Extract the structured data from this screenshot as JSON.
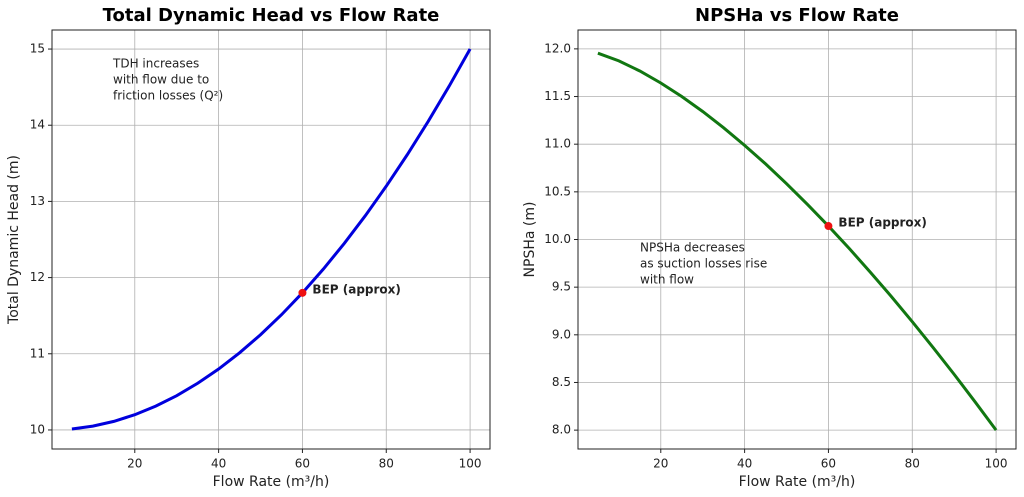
{
  "chart_data": [
    {
      "type": "line",
      "title": "Total Dynamic Head vs Flow Rate",
      "x_label": "Flow Rate (m³/h)",
      "y_label": "Total Dynamic Head (m)",
      "x": [
        5,
        10,
        15,
        20,
        25,
        30,
        35,
        40,
        45,
        50,
        55,
        60,
        65,
        70,
        75,
        80,
        85,
        90,
        95,
        100
      ],
      "series": [
        {
          "name": "TDH",
          "color": "#0000dd",
          "values": [
            10.0125,
            10.05,
            10.1125,
            10.2,
            10.3125,
            10.45,
            10.6125,
            10.8,
            11.0125,
            11.25,
            11.5125,
            11.8,
            12.1125,
            12.45,
            12.8125,
            13.2,
            13.6125,
            14.05,
            14.5125,
            15
          ]
        }
      ],
      "xlim": [
        0.25,
        104.75
      ],
      "xticks": [
        20,
        40,
        60,
        80,
        100
      ],
      "ylim": [
        9.75,
        15.25
      ],
      "yticks": [
        10,
        11,
        12,
        13,
        14,
        15
      ],
      "grid": true,
      "point": {
        "x": 60,
        "y": 11.8,
        "label": "BEP (approx)",
        "color": "#ee1111"
      },
      "annotation": {
        "lines": [
          "TDH increases",
          "with flow due to",
          "friction losses (Q²)"
        ],
        "color": "#2222cc"
      }
    },
    {
      "type": "line",
      "title": "NPSHa vs Flow Rate",
      "x_label": "Flow Rate (m³/h)",
      "y_label": "NPSHa (m)",
      "x": [
        5,
        10,
        15,
        20,
        25,
        30,
        35,
        40,
        45,
        50,
        55,
        60,
        65,
        70,
        75,
        80,
        85,
        90,
        95,
        100
      ],
      "series": [
        {
          "name": "NPSHa",
          "color": "#117711",
          "values": [
            11.955,
            11.874,
            11.768,
            11.642,
            11.5,
            11.343,
            11.172,
            10.988,
            10.793,
            10.586,
            10.368,
            10.141,
            9.904,
            9.657,
            9.402,
            9.138,
            8.865,
            8.585,
            8.296,
            8.0
          ]
        }
      ],
      "xlim": [
        0.25,
        104.75
      ],
      "xticks": [
        20,
        40,
        60,
        80,
        100
      ],
      "ylim": [
        7.802,
        12.198
      ],
      "yticks": [
        {
          "value": 8,
          "label": "8.0"
        },
        {
          "value": 8.5,
          "label": "8.5"
        },
        {
          "value": 9,
          "label": "9.0"
        },
        {
          "value": 9.5,
          "label": "9.5"
        },
        {
          "value": 10,
          "label": "10.0"
        },
        {
          "value": 10.5,
          "label": "10.5"
        },
        {
          "value": 11,
          "label": "11.0"
        },
        {
          "value": 11.5,
          "label": "11.5"
        },
        {
          "value": 12,
          "label": "12.0"
        }
      ],
      "grid": true,
      "point": {
        "x": 60,
        "y": 10.141,
        "label": "BEP (approx)",
        "color": "#ee1111"
      },
      "annotation": {
        "lines": [
          "NPSHa decreases",
          "as suction losses rise",
          "with flow"
        ],
        "color": "#228822"
      }
    }
  ]
}
